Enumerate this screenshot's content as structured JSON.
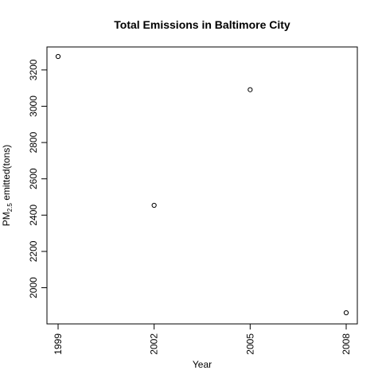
{
  "chart_data": {
    "type": "scatter",
    "title": "Total Emissions in Baltimore City",
    "xlabel": "Year",
    "ylabel": {
      "prefix": "PM",
      "subscript": "2.5",
      "suffix": " emitted(tons)"
    },
    "x_ticks": [
      "1999",
      "2002",
      "2005",
      "2008"
    ],
    "y_ticks": [
      2000,
      2200,
      2400,
      2600,
      2800,
      3000,
      3200
    ],
    "xlim": [
      1999,
      2008
    ],
    "ylim": [
      1862,
      3274
    ],
    "grid": false,
    "legend": "none",
    "points": [
      {
        "x": "1999",
        "y": 3274
      },
      {
        "x": "2002",
        "y": 2454
      },
      {
        "x": "2005",
        "y": 3091
      },
      {
        "x": "2008",
        "y": 1862
      }
    ],
    "colors": {
      "marker": "#000000",
      "axis": "#000000"
    }
  }
}
